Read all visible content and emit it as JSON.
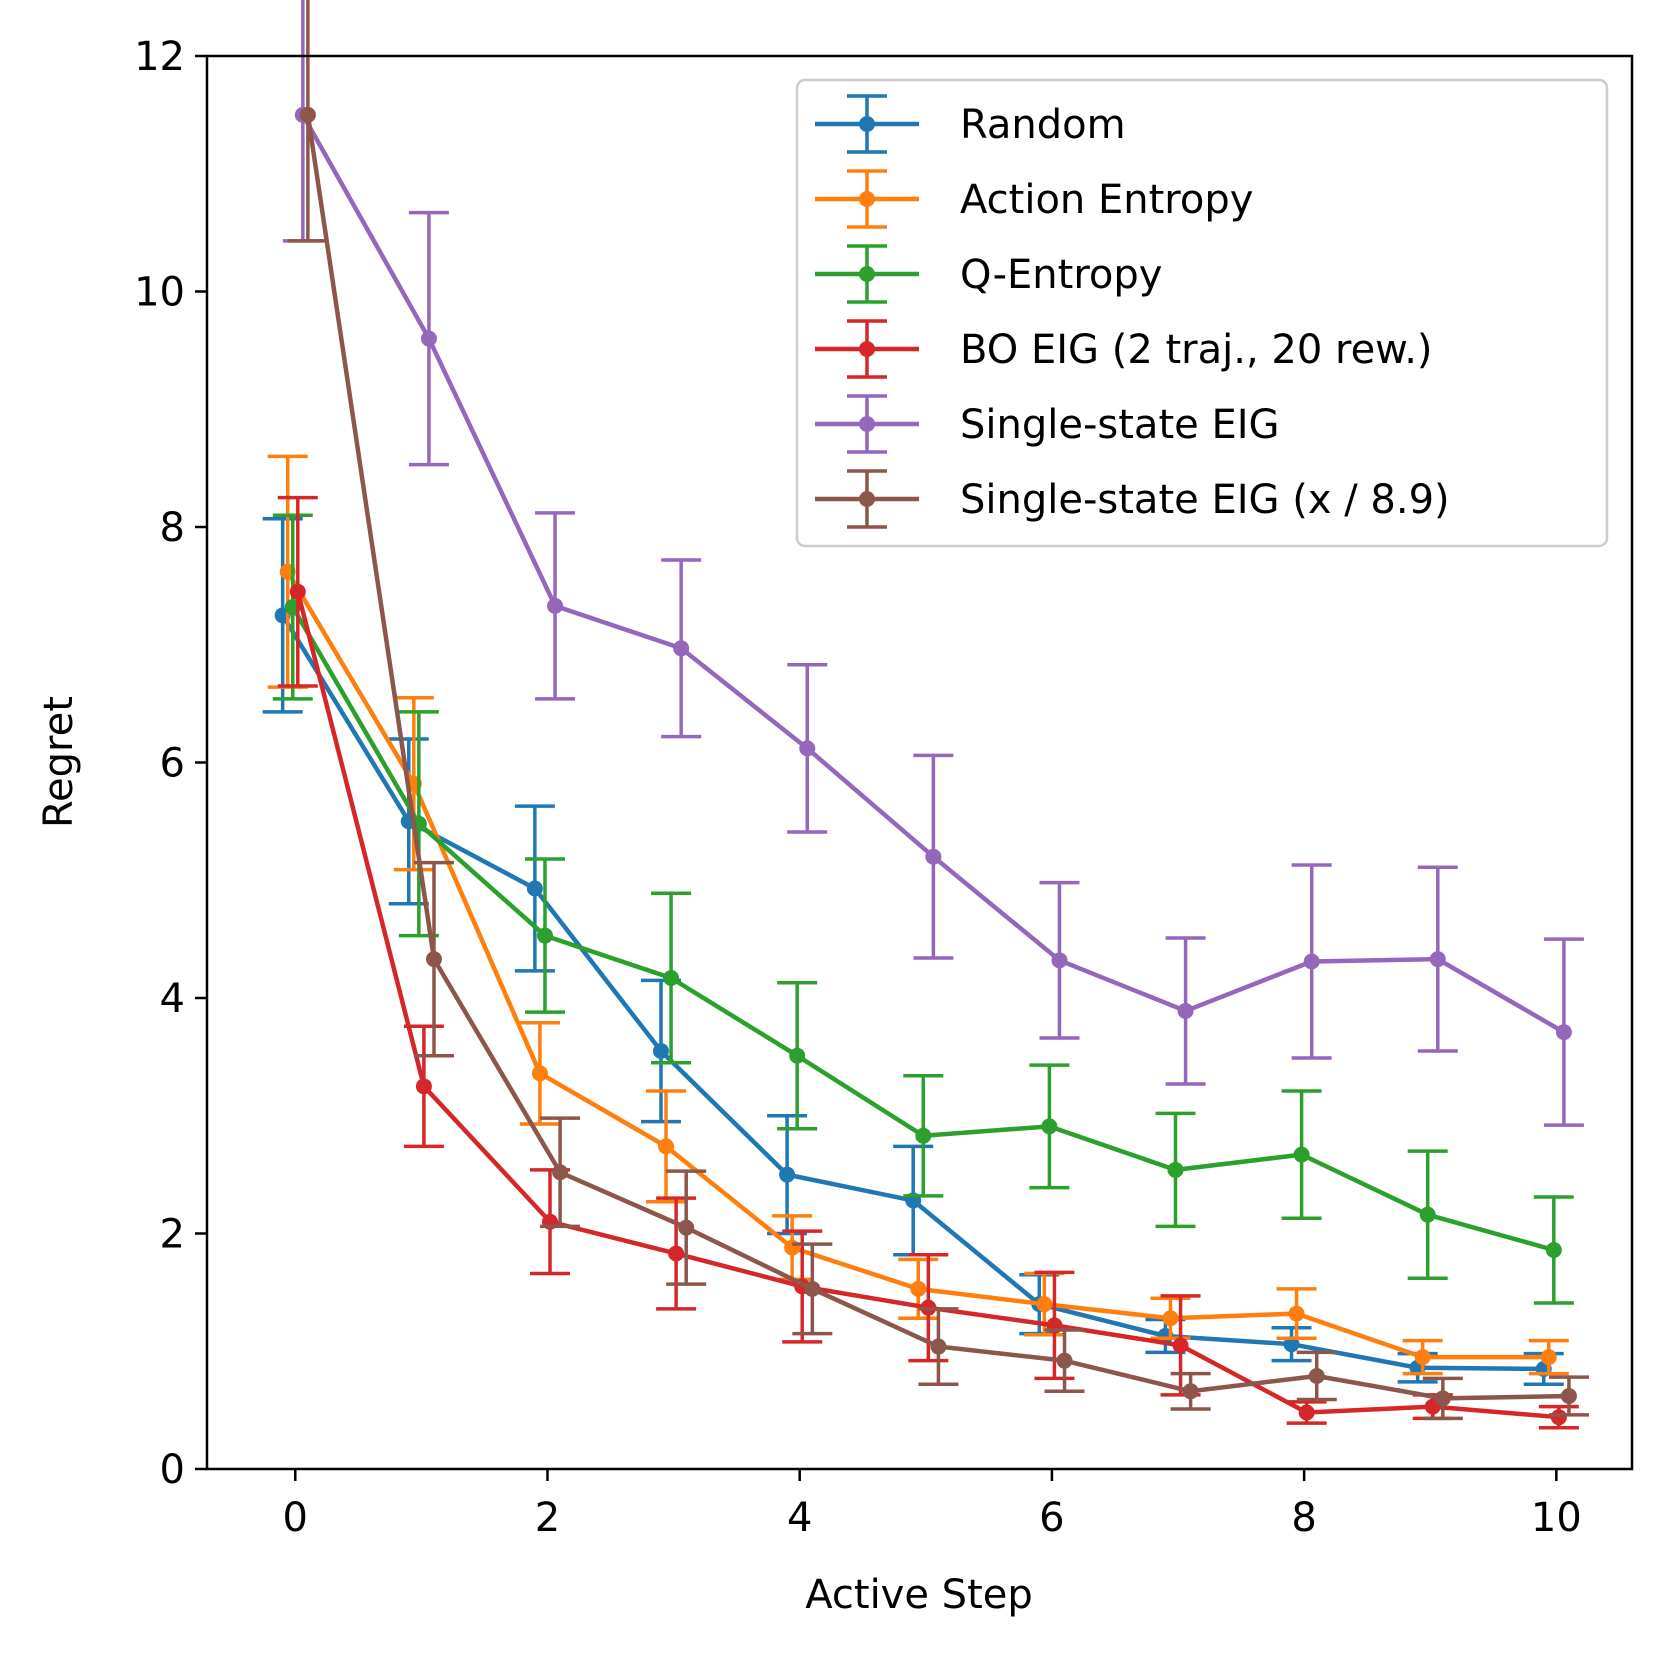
{
  "chart_data": {
    "type": "line",
    "title": "",
    "xlabel": "Active Step",
    "ylabel": "Regret",
    "xlim": [
      -0.7,
      10.6
    ],
    "ylim": [
      0,
      12
    ],
    "x_ticks": [
      "0",
      "2",
      "4",
      "6",
      "8",
      "10"
    ],
    "y_ticks": [
      "0",
      "2",
      "4",
      "6",
      "8",
      "10",
      "12"
    ],
    "x_tick_values": [
      0,
      2,
      4,
      6,
      8,
      10
    ],
    "y_tick_values": [
      0,
      2,
      4,
      6,
      8,
      10,
      12
    ],
    "grid": false,
    "legend_position": "top-right",
    "error_bars": true,
    "series": [
      {
        "name": "Random",
        "color": "#1f77b4",
        "x": [
          -0.1,
          0.9,
          1.9,
          2.9,
          3.9,
          4.9,
          5.9,
          6.9,
          7.9,
          8.9,
          9.9
        ],
        "y": [
          7.25,
          5.5,
          4.93,
          3.55,
          2.5,
          2.28,
          1.4,
          1.13,
          1.06,
          0.86,
          0.85
        ],
        "err": [
          0.82,
          0.7,
          0.7,
          0.6,
          0.5,
          0.46,
          0.25,
          0.14,
          0.14,
          0.12,
          0.13
        ]
      },
      {
        "name": "Action Entropy",
        "color": "#ff7f0e",
        "x": [
          -0.06,
          0.94,
          1.94,
          2.94,
          3.94,
          4.94,
          5.94,
          6.94,
          7.94,
          8.94,
          9.94
        ],
        "y": [
          7.62,
          5.82,
          3.36,
          2.74,
          1.88,
          1.53,
          1.4,
          1.28,
          1.32,
          0.95,
          0.95
        ],
        "err": [
          0.98,
          0.73,
          0.43,
          0.47,
          0.27,
          0.25,
          0.26,
          0.17,
          0.21,
          0.14,
          0.14
        ]
      },
      {
        "name": "Q-Entropy",
        "color": "#2ca02c",
        "x": [
          -0.02,
          0.98,
          1.98,
          2.98,
          3.98,
          4.98,
          5.98,
          6.98,
          7.98,
          8.98,
          9.98
        ],
        "y": [
          7.32,
          5.48,
          4.53,
          4.17,
          3.51,
          2.83,
          2.91,
          2.54,
          2.67,
          2.16,
          1.86
        ],
        "err": [
          0.78,
          0.95,
          0.65,
          0.72,
          0.62,
          0.51,
          0.52,
          0.48,
          0.54,
          0.54,
          0.45
        ]
      },
      {
        "name": "BO EIG (2 traj., 20 rew.)",
        "color": "#d62728",
        "x": [
          0.02,
          1.02,
          2.02,
          3.02,
          4.02,
          5.02,
          6.02,
          7.02,
          8.02,
          9.02,
          10.02
        ],
        "y": [
          7.45,
          3.25,
          2.1,
          1.83,
          1.55,
          1.37,
          1.22,
          1.05,
          0.48,
          0.53,
          0.44
        ],
        "err": [
          0.8,
          0.51,
          0.44,
          0.47,
          0.47,
          0.45,
          0.45,
          0.42,
          0.09,
          0.1,
          0.09
        ]
      },
      {
        "name": "Single-state EIG",
        "color": "#9467bd",
        "x": [
          0.06,
          1.06,
          2.06,
          3.06,
          4.06,
          5.06,
          6.06,
          7.06,
          8.06,
          9.06,
          10.06
        ],
        "y": [
          11.5,
          9.6,
          7.33,
          6.97,
          6.12,
          5.2,
          4.32,
          3.89,
          4.31,
          4.33,
          3.71
        ],
        "err": [
          1.07,
          1.07,
          0.79,
          0.75,
          0.71,
          0.86,
          0.66,
          0.62,
          0.82,
          0.78,
          0.79
        ]
      },
      {
        "name": "Single-state EIG (x / 8.9)",
        "color": "#8c564b",
        "x": [
          0.1,
          1.1,
          2.1,
          3.1,
          4.1,
          5.1,
          6.1,
          7.1,
          8.1,
          9.1,
          10.1
        ],
        "y": [
          11.5,
          4.33,
          2.52,
          2.05,
          1.53,
          1.04,
          0.92,
          0.66,
          0.79,
          0.6,
          0.62
        ],
        "err": [
          1.07,
          0.82,
          0.46,
          0.48,
          0.38,
          0.32,
          0.26,
          0.15,
          0.2,
          0.17,
          0.16
        ]
      }
    ]
  }
}
